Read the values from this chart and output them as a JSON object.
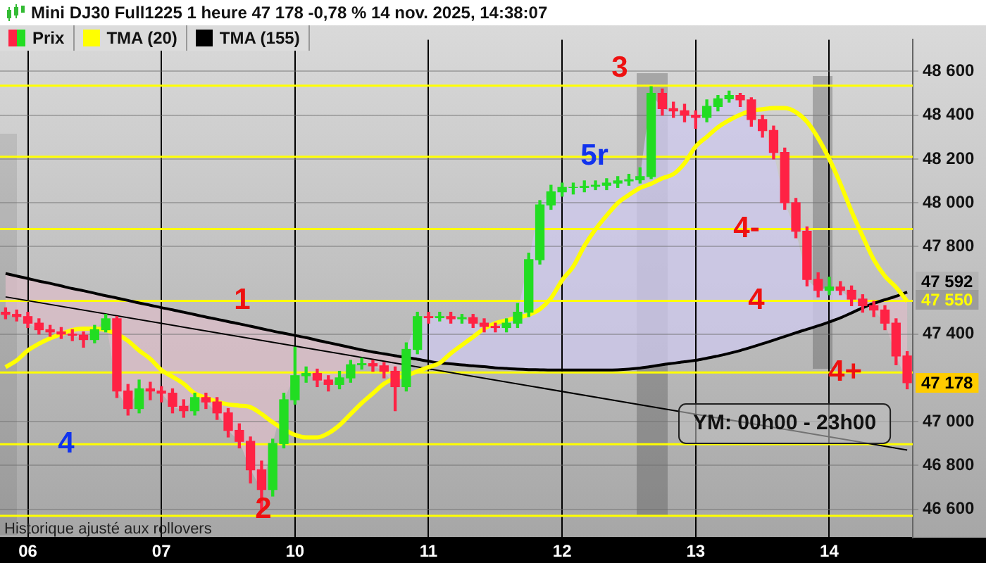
{
  "chart_data": {
    "type": "candlestick",
    "title": "Mini DJ30 Full1225 1 heure 47 178 -0,78 % 14 nov. 2025, 14:38:07",
    "categories": [
      null,
      null,
      "06",
      null,
      null,
      null,
      null,
      null,
      null,
      null,
      null,
      null,
      null,
      null,
      "07",
      null,
      null,
      null,
      null,
      null,
      null,
      null,
      null,
      null,
      null,
      null,
      "10",
      null,
      null,
      null,
      null,
      null,
      null,
      null,
      null,
      null,
      null,
      null,
      "11",
      null,
      null,
      null,
      null,
      null,
      null,
      null,
      null,
      null,
      null,
      null,
      "12",
      null,
      null,
      null,
      null,
      null,
      null,
      null,
      null,
      null,
      null,
      null,
      "13",
      null,
      null,
      null,
      null,
      null,
      null,
      null,
      null,
      null,
      null,
      null,
      "14",
      null,
      null,
      null,
      null,
      null,
      null,
      null
    ],
    "series": [
      {
        "name": "Prix",
        "type": "candlestick",
        "colors": [
          "#ff2244",
          "#ff2244",
          "#ff2244",
          "#ff2244",
          "#ff2244",
          "#ff2244",
          "#ff2244",
          "#ff2244",
          "#22dd22",
          "#22dd22",
          "#ff2244",
          "#ff2244",
          "#22dd22",
          "#ff2244",
          "#ff2244",
          "#ff2244",
          "#ff2244",
          "#22dd22",
          "#ff2244",
          "#ff2244",
          "#ff2244",
          "#ff2244",
          "#ff2244",
          "#ff2244",
          "#22dd22",
          "#22dd22",
          "#22dd22",
          "#22dd22",
          "#ff2244",
          "#ff2244",
          "#22dd22",
          "#22dd22",
          "#22dd22",
          "#ff2244",
          "#ff2244",
          "#ff2244",
          "#22dd22",
          "#22dd22",
          "#ff2244",
          "#22dd22",
          "#ff2244",
          "#22dd22",
          "#ff2244",
          "#ff2244",
          "#ff2244",
          "#22dd22",
          "#22dd22",
          "#22dd22",
          "#22dd22",
          "#22dd22",
          "#22dd22",
          "#22dd22",
          "#22dd22",
          "#22dd22",
          "#22dd22",
          "#22dd22",
          "#22dd22",
          "#22dd22",
          "#22dd22",
          "#ff2244",
          "#ff2244",
          "#ff2244",
          "#ff2244",
          "#22dd22",
          "#22dd22",
          "#22dd22",
          "#ff2244",
          "#ff2244",
          "#ff2244",
          "#ff2244",
          "#ff2244",
          "#ff2244",
          "#ff2244",
          "#ff2244",
          "#22dd22",
          "#ff2244",
          "#ff2244",
          "#ff2244",
          "#ff2244",
          "#ff2244",
          "#ff2244",
          "#ff2244"
        ],
        "ohlc": [
          [
            47500,
            47520,
            47470,
            47490
          ],
          [
            47490,
            47510,
            47460,
            47480
          ],
          [
            47480,
            47500,
            47430,
            47450
          ],
          [
            47450,
            47470,
            47400,
            47420
          ],
          [
            47420,
            47440,
            47390,
            47410
          ],
          [
            47410,
            47430,
            47380,
            47400
          ],
          [
            47400,
            47420,
            47370,
            47395
          ],
          [
            47395,
            47410,
            47340,
            47375
          ],
          [
            47375,
            47440,
            47360,
            47420
          ],
          [
            47420,
            47490,
            47410,
            47470
          ],
          [
            47470,
            47480,
            47110,
            47140
          ],
          [
            47140,
            47170,
            47030,
            47060
          ],
          [
            47060,
            47190,
            47040,
            47150
          ],
          [
            47150,
            47180,
            47100,
            47140
          ],
          [
            47140,
            47160,
            47090,
            47130
          ],
          [
            47130,
            47150,
            47040,
            47070
          ],
          [
            47070,
            47100,
            47020,
            47050
          ],
          [
            47050,
            47130,
            47030,
            47110
          ],
          [
            47110,
            47130,
            47060,
            47090
          ],
          [
            47090,
            47110,
            47010,
            47040
          ],
          [
            47040,
            47060,
            46930,
            46960
          ],
          [
            46960,
            46990,
            46880,
            46910
          ],
          [
            46910,
            46930,
            46720,
            46780
          ],
          [
            46780,
            46820,
            46600,
            46690
          ],
          [
            46690,
            46920,
            46660,
            46900
          ],
          [
            46900,
            47130,
            46880,
            47100
          ],
          [
            47100,
            47340,
            47080,
            47210
          ],
          [
            47210,
            47250,
            47180,
            47220
          ],
          [
            47220,
            47240,
            47160,
            47190
          ],
          [
            47190,
            47210,
            47140,
            47170
          ],
          [
            47170,
            47230,
            47150,
            47200
          ],
          [
            47200,
            47280,
            47180,
            47260
          ],
          [
            47260,
            47290,
            47240,
            47265
          ],
          [
            47265,
            47280,
            47230,
            47255
          ],
          [
            47255,
            47270,
            47200,
            47230
          ],
          [
            47230,
            47250,
            47050,
            47160
          ],
          [
            47160,
            47360,
            47140,
            47330
          ],
          [
            47330,
            47500,
            47310,
            47480
          ],
          [
            47480,
            47500,
            47450,
            47475
          ],
          [
            47475,
            47500,
            47460,
            47480
          ],
          [
            47480,
            47500,
            47450,
            47470
          ],
          [
            47470,
            47490,
            47450,
            47475
          ],
          [
            47475,
            47490,
            47430,
            47450
          ],
          [
            47450,
            47470,
            47410,
            47435
          ],
          [
            47435,
            47450,
            47410,
            47430
          ],
          [
            47430,
            47470,
            47410,
            47450
          ],
          [
            47450,
            47540,
            47430,
            47500
          ],
          [
            47500,
            47770,
            47480,
            47740
          ],
          [
            47740,
            48010,
            47720,
            47990
          ],
          [
            47990,
            48080,
            47970,
            48050
          ],
          [
            48050,
            48090,
            48030,
            48070
          ],
          [
            48070,
            48090,
            48040,
            48070
          ],
          [
            48070,
            48100,
            48050,
            48075
          ],
          [
            48075,
            48100,
            48060,
            48080
          ],
          [
            48080,
            48110,
            48060,
            48090
          ],
          [
            48090,
            48120,
            48070,
            48100
          ],
          [
            48100,
            48130,
            48080,
            48105
          ],
          [
            48105,
            48160,
            48090,
            48120
          ],
          [
            48120,
            48530,
            48110,
            48500
          ],
          [
            48500,
            48520,
            48400,
            48430
          ],
          [
            48430,
            48460,
            48390,
            48420
          ],
          [
            48420,
            48450,
            48370,
            48400
          ],
          [
            48400,
            48420,
            48340,
            48390
          ],
          [
            48390,
            48470,
            48370,
            48440
          ],
          [
            48440,
            48490,
            48420,
            48475
          ],
          [
            48475,
            48510,
            48460,
            48490
          ],
          [
            48490,
            48500,
            48440,
            48470
          ],
          [
            48470,
            48480,
            48350,
            48380
          ],
          [
            48380,
            48400,
            48300,
            48330
          ],
          [
            48330,
            48350,
            48200,
            48230
          ],
          [
            48230,
            48250,
            47970,
            48000
          ],
          [
            48000,
            48020,
            47840,
            47870
          ],
          [
            47870,
            47890,
            47620,
            47650
          ],
          [
            47650,
            47680,
            47570,
            47600
          ],
          [
            47600,
            47660,
            47580,
            47615
          ],
          [
            47615,
            47640,
            47580,
            47600
          ],
          [
            47600,
            47620,
            47530,
            47560
          ],
          [
            47560,
            47580,
            47500,
            47530
          ],
          [
            47530,
            47550,
            47480,
            47510
          ],
          [
            47510,
            47530,
            47420,
            47450
          ],
          [
            47450,
            47470,
            47260,
            47300
          ],
          [
            47300,
            47320,
            47150,
            47178
          ]
        ]
      },
      {
        "name": "TMA (20)",
        "type": "line",
        "color": "#ffff00",
        "values": [
          47249,
          47280,
          47325,
          47356,
          47381,
          47400,
          47419,
          47425,
          47425,
          47419,
          47400,
          47369,
          47325,
          47287,
          47236,
          47205,
          47173,
          47129,
          47110,
          47091,
          47079,
          47073,
          47066,
          47035,
          46997,
          46965,
          46940,
          46928,
          46928,
          46947,
          46984,
          47035,
          47085,
          47129,
          47173,
          47199,
          47211,
          47230,
          47249,
          47268,
          47312,
          47350,
          47387,
          47425,
          47450,
          47463,
          47476,
          47488,
          47514,
          47564,
          47646,
          47709,
          47803,
          47879,
          47942,
          47999,
          48036,
          48068,
          48087,
          48112,
          48131,
          48181,
          48257,
          48301,
          48345,
          48377,
          48402,
          48421,
          48427,
          48433,
          48433,
          48414,
          48370,
          48295,
          48200,
          48087,
          47961,
          47847,
          47740,
          47665,
          47614,
          47550
        ]
      },
      {
        "name": "TMA (155)",
        "type": "line",
        "color": "#000000",
        "values": [
          47677,
          47665,
          47654,
          47642,
          47632,
          47620,
          47608,
          47598,
          47587,
          47575,
          47565,
          47554,
          47542,
          47532,
          47521,
          47511,
          47500,
          47489,
          47478,
          47468,
          47457,
          47447,
          47436,
          47425,
          47414,
          47404,
          47394,
          47384,
          47372,
          47361,
          47350,
          47339,
          47328,
          47318,
          47310,
          47301,
          47293,
          47285,
          47276,
          47268,
          47264,
          47259,
          47255,
          47251,
          47246,
          47243,
          47240,
          47238,
          47237,
          47236,
          47236,
          47236,
          47236,
          47236,
          47236,
          47237,
          47240,
          47245,
          47252,
          47260,
          47267,
          47274,
          47280,
          47290,
          47300,
          47312,
          47325,
          47340,
          47356,
          47372,
          47389,
          47406,
          47422,
          47438,
          47455,
          47474,
          47497,
          47520,
          47540,
          47557,
          47573,
          47592
        ]
      },
      {
        "type": "line",
        "color": "#000000",
        "values": [
          47570,
          null,
          null,
          null,
          null,
          null,
          null,
          null,
          null,
          null,
          null,
          null,
          null,
          null,
          null,
          null,
          null,
          null,
          null,
          null,
          null,
          null,
          null,
          null,
          null,
          null,
          null,
          null,
          null,
          null,
          null,
          null,
          null,
          null,
          null,
          null,
          null,
          null,
          null,
          null,
          null,
          null,
          null,
          null,
          null,
          null,
          null,
          null,
          null,
          null,
          null,
          null,
          null,
          null,
          null,
          null,
          null,
          null,
          null,
          null,
          null,
          null,
          null,
          null,
          null,
          null,
          null,
          null,
          null,
          null,
          null,
          null,
          null,
          null,
          null,
          null,
          null,
          null,
          null,
          null,
          null,
          46870
        ]
      }
    ],
    "ylim": [
      46470,
      48745
    ],
    "yticks": [
      {
        "value": 46600,
        "label": "46 600"
      },
      {
        "value": 46800,
        "label": "46 800"
      },
      {
        "value": 47000,
        "label": "47 000"
      },
      {
        "value": 47400,
        "label": "47 400"
      },
      {
        "value": 47800,
        "label": "47 800"
      },
      {
        "value": 48000,
        "label": "48 000"
      },
      {
        "value": 48200,
        "label": "48 200"
      },
      {
        "value": 48400,
        "label": "48 400"
      },
      {
        "value": 48600,
        "label": "48 600"
      }
    ],
    "ref_lines": [
      {
        "axis": "y",
        "value": 48535,
        "color": "#ffff00"
      },
      {
        "axis": "y",
        "value": 48210,
        "color": "#ffff00"
      },
      {
        "axis": "y",
        "value": 47880,
        "color": "#ffff00"
      },
      {
        "axis": "y",
        "value": 47552,
        "color": "#ffff00"
      },
      {
        "axis": "y",
        "value": 47225,
        "color": "#ffff00"
      },
      {
        "axis": "y",
        "value": 46897,
        "color": "#ffff00"
      },
      {
        "axis": "y",
        "value": 46570,
        "color": "#ffff00"
      }
    ],
    "annotations": [
      {
        "text": "3",
        "y": 48535
      },
      {
        "text": "5r",
        "y": 48210
      },
      {
        "text": "4-",
        "y": 47880
      },
      {
        "text": "1",
        "y": 47552
      },
      {
        "text": "4",
        "y": 47552
      },
      {
        "text": "4+",
        "y": 47225
      },
      {
        "text": "4",
        "y": 46897
      },
      {
        "text": "2",
        "y": 46570
      },
      "YM: 00h00 - 23h00",
      "Historique ajusté aux rollovers",
      "47 592",
      "47 550",
      "47 178"
    ],
    "grid": true,
    "legend": "top left"
  }
}
